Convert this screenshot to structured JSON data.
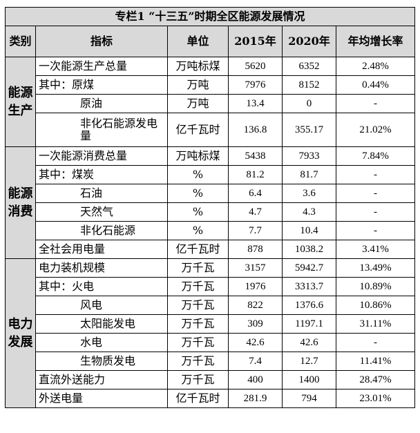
{
  "title": "专栏1 “十三五”时期全区能源发展情况",
  "headers": {
    "category": "类别",
    "indicator": "指标",
    "unit": "单位",
    "y2015": "2015年",
    "y2020": "2020年",
    "growth": "年均增长率"
  },
  "groups": [
    {
      "category": "能源生产",
      "rows": [
        {
          "indicator": "一次能源生产总量",
          "indent": 0,
          "unit": "万吨标煤",
          "v2015": "5620",
          "v2020": "6352",
          "growth": "2.48%"
        },
        {
          "indicator": "其中：原煤",
          "indent": 0,
          "unit": "万吨",
          "v2015": "7976",
          "v2020": "8152",
          "growth": "0.44%"
        },
        {
          "indicator": "原油",
          "indent": 1,
          "unit": "万吨",
          "v2015": "13.4",
          "v2020": "0",
          "growth": "-"
        },
        {
          "indicator": "非化石能源发电量",
          "indent": 1,
          "unit": "亿千瓦时",
          "v2015": "136.8",
          "v2020": "355.17",
          "growth": "21.02%",
          "tall": true
        }
      ]
    },
    {
      "category": "能源消费",
      "rows": [
        {
          "indicator": "一次能源消费总量",
          "indent": 0,
          "unit": "万吨标煤",
          "v2015": "5438",
          "v2020": "7933",
          "growth": "7.84%"
        },
        {
          "indicator": "其中：煤炭",
          "indent": 0,
          "unit": "%",
          "v2015": "81.2",
          "v2020": "81.7",
          "growth": "-"
        },
        {
          "indicator": "石油",
          "indent": 1,
          "unit": "%",
          "v2015": "6.4",
          "v2020": "3.6",
          "growth": "-"
        },
        {
          "indicator": "天然气",
          "indent": 1,
          "unit": "%",
          "v2015": "4.7",
          "v2020": "4.3",
          "growth": "-"
        },
        {
          "indicator": "非化石能源",
          "indent": 1,
          "unit": "%",
          "v2015": "7.7",
          "v2020": "10.4",
          "growth": "-"
        },
        {
          "indicator": "全社会用电量",
          "indent": 0,
          "unit": "亿千瓦时",
          "v2015": "878",
          "v2020": "1038.2",
          "growth": "3.41%"
        }
      ]
    },
    {
      "category": "电力发展",
      "rows": [
        {
          "indicator": "电力装机规模",
          "indent": 0,
          "unit": "万千瓦",
          "v2015": "3157",
          "v2020": "5942.7",
          "growth": "13.49%"
        },
        {
          "indicator": "其中：火电",
          "indent": 0,
          "unit": "万千瓦",
          "v2015": "1976",
          "v2020": "3313.7",
          "growth": "10.89%"
        },
        {
          "indicator": "风电",
          "indent": 1,
          "unit": "万千瓦",
          "v2015": "822",
          "v2020": "1376.6",
          "growth": "10.86%"
        },
        {
          "indicator": "太阳能发电",
          "indent": 1,
          "unit": "万千瓦",
          "v2015": "309",
          "v2020": "1197.1",
          "growth": "31.11%"
        },
        {
          "indicator": "水电",
          "indent": 1,
          "unit": "万千瓦",
          "v2015": "42.6",
          "v2020": "42.6",
          "growth": "-"
        },
        {
          "indicator": "生物质发电",
          "indent": 1,
          "unit": "万千瓦",
          "v2015": "7.4",
          "v2020": "12.7",
          "growth": "11.41%"
        },
        {
          "indicator": "直流外送能力",
          "indent": 0,
          "unit": "万千瓦",
          "v2015": "400",
          "v2020": "1400",
          "growth": "28.47%"
        },
        {
          "indicator": "外送电量",
          "indent": 0,
          "unit": "亿千瓦时",
          "v2015": "281.9",
          "v2020": "794",
          "growth": "23.01%"
        }
      ]
    }
  ]
}
